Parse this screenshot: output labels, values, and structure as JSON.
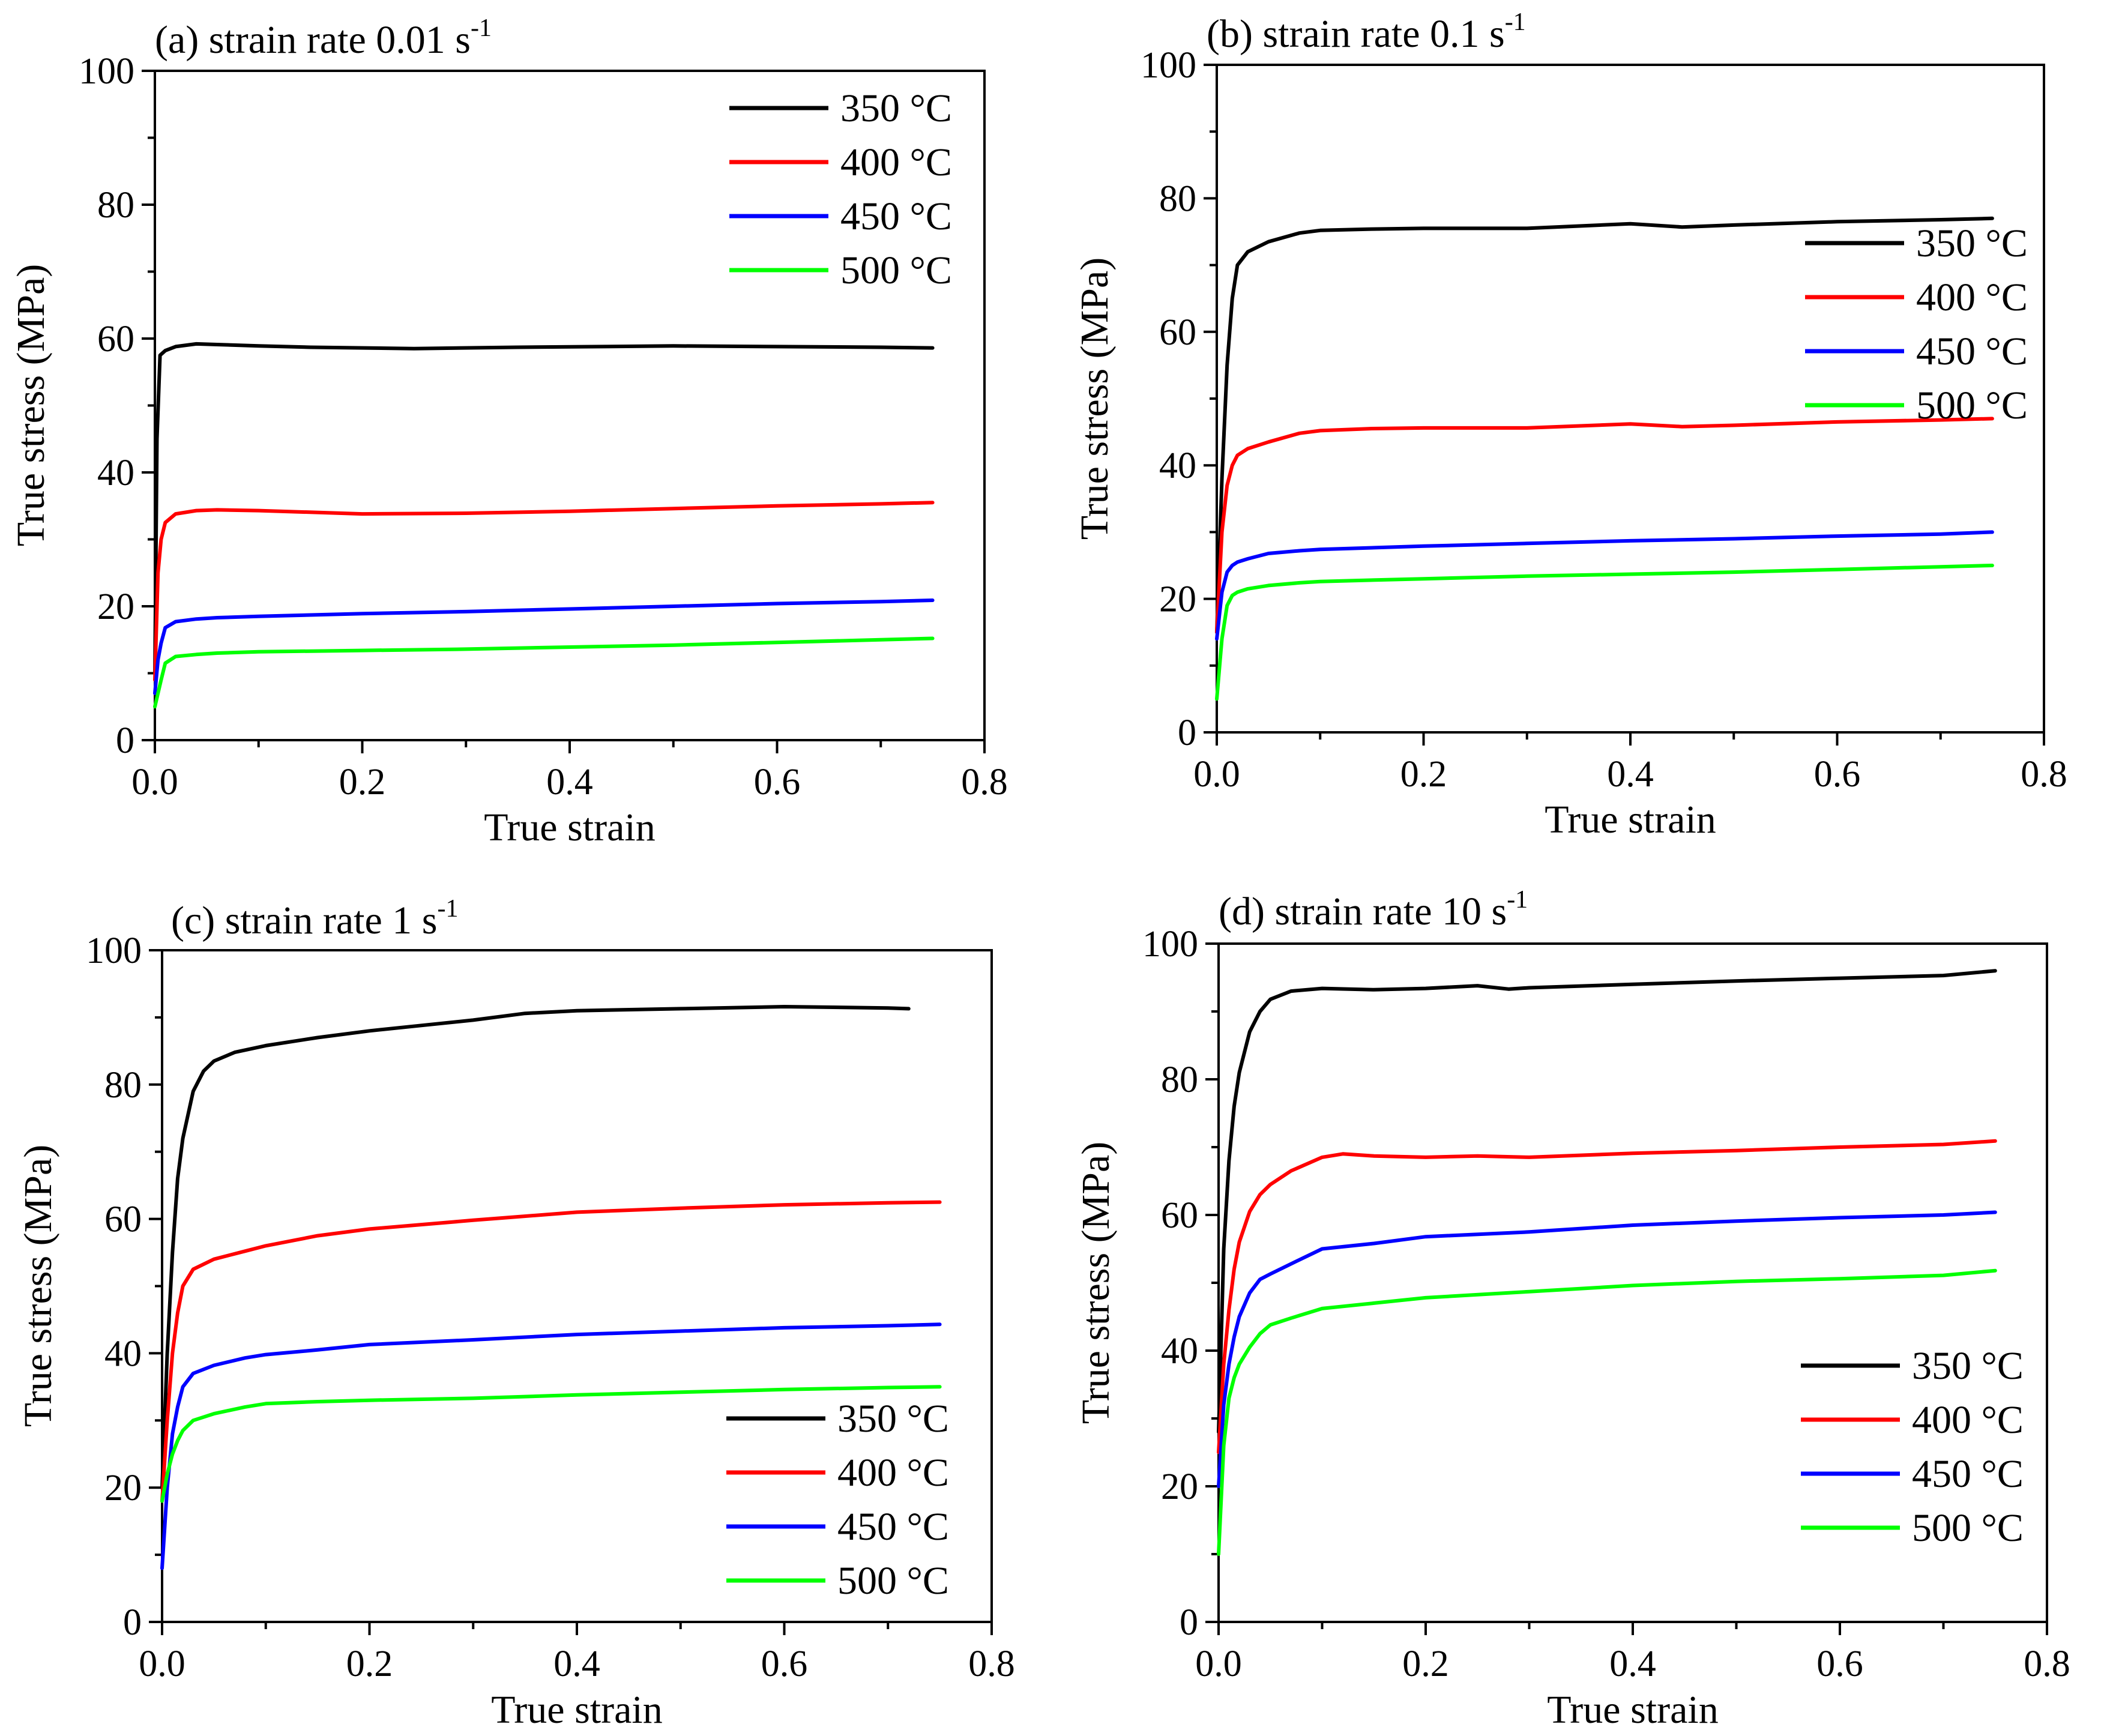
{
  "chart_data": [
    {
      "type": "line",
      "panel": "a",
      "title_text": "(a) strain rate 0.01 s",
      "title_sup": "-1",
      "xlabel": "True strain",
      "ylabel": "True stress (MPa)",
      "xlim": [
        0,
        0.8
      ],
      "ylim": [
        0,
        100
      ],
      "xticks": [
        "0.0",
        "0.2",
        "0.4",
        "0.6",
        "0.8"
      ],
      "yticks": [
        "0",
        "20",
        "40",
        "60",
        "80",
        "100"
      ],
      "legend_position": "top-right",
      "series": [
        {
          "name": "350 °C",
          "color": "#000000",
          "x": [
            0,
            0.002,
            0.005,
            0.01,
            0.02,
            0.04,
            0.06,
            0.1,
            0.15,
            0.25,
            0.35,
            0.5,
            0.6,
            0.7,
            0.75
          ],
          "y": [
            10,
            45,
            57.5,
            58.2,
            58.8,
            59.2,
            59.1,
            58.9,
            58.7,
            58.5,
            58.7,
            58.9,
            58.8,
            58.7,
            58.6
          ]
        },
        {
          "name": "400 °C",
          "color": "#ff0000",
          "x": [
            0,
            0.003,
            0.006,
            0.01,
            0.02,
            0.04,
            0.06,
            0.1,
            0.2,
            0.3,
            0.4,
            0.5,
            0.6,
            0.7,
            0.75
          ],
          "y": [
            9,
            25,
            30,
            32.5,
            33.8,
            34.3,
            34.4,
            34.3,
            33.8,
            33.9,
            34.2,
            34.6,
            35,
            35.3,
            35.5
          ]
        },
        {
          "name": "450 °C",
          "color": "#0000ff",
          "x": [
            0,
            0.003,
            0.006,
            0.01,
            0.02,
            0.04,
            0.06,
            0.1,
            0.2,
            0.3,
            0.4,
            0.5,
            0.6,
            0.7,
            0.75
          ],
          "y": [
            7,
            12,
            14.5,
            16.8,
            17.7,
            18.1,
            18.3,
            18.5,
            18.9,
            19.2,
            19.6,
            20,
            20.4,
            20.7,
            20.9
          ]
        },
        {
          "name": "500 °C",
          "color": "#00ff00",
          "x": [
            0,
            0.003,
            0.006,
            0.01,
            0.02,
            0.04,
            0.06,
            0.1,
            0.2,
            0.3,
            0.4,
            0.5,
            0.6,
            0.7,
            0.75
          ],
          "y": [
            5,
            7,
            9,
            11.5,
            12.5,
            12.8,
            13,
            13.2,
            13.4,
            13.6,
            13.9,
            14.2,
            14.6,
            15,
            15.2
          ]
        }
      ]
    },
    {
      "type": "line",
      "panel": "b",
      "title_text": "(b) strain rate 0.1 s",
      "title_sup": "-1",
      "xlabel": "True strain",
      "ylabel": "True stress (MPa)",
      "xlim": [
        0,
        0.8
      ],
      "ylim": [
        0,
        100
      ],
      "xticks": [
        "0.0",
        "0.2",
        "0.4",
        "0.6",
        "0.8"
      ],
      "yticks": [
        "0",
        "20",
        "40",
        "60",
        "80",
        "100"
      ],
      "legend_position": "right",
      "series": [
        {
          "name": "350 °C",
          "color": "#000000",
          "x": [
            0,
            0.005,
            0.01,
            0.015,
            0.02,
            0.03,
            0.05,
            0.08,
            0.1,
            0.15,
            0.2,
            0.3,
            0.4,
            0.45,
            0.5,
            0.6,
            0.7,
            0.75
          ],
          "y": [
            15,
            38,
            55,
            65,
            70,
            72,
            73.5,
            74.8,
            75.2,
            75.4,
            75.5,
            75.5,
            76.2,
            75.7,
            76,
            76.5,
            76.8,
            77
          ]
        },
        {
          "name": "400 °C",
          "color": "#ff0000",
          "x": [
            0,
            0.005,
            0.01,
            0.015,
            0.02,
            0.03,
            0.05,
            0.08,
            0.1,
            0.15,
            0.2,
            0.3,
            0.4,
            0.45,
            0.5,
            0.6,
            0.7,
            0.75
          ],
          "y": [
            15,
            30,
            37,
            40,
            41.5,
            42.5,
            43.5,
            44.8,
            45.2,
            45.5,
            45.6,
            45.6,
            46.2,
            45.8,
            46,
            46.5,
            46.8,
            47
          ]
        },
        {
          "name": "450 °C",
          "color": "#0000ff",
          "x": [
            0,
            0.005,
            0.01,
            0.015,
            0.02,
            0.03,
            0.05,
            0.08,
            0.1,
            0.2,
            0.3,
            0.4,
            0.5,
            0.6,
            0.7,
            0.75
          ],
          "y": [
            14,
            21,
            24,
            25,
            25.5,
            26,
            26.8,
            27.2,
            27.4,
            27.9,
            28.3,
            28.7,
            29,
            29.4,
            29.7,
            30
          ]
        },
        {
          "name": "500 °C",
          "color": "#00ff00",
          "x": [
            0,
            0.005,
            0.01,
            0.015,
            0.02,
            0.03,
            0.05,
            0.08,
            0.1,
            0.2,
            0.3,
            0.4,
            0.5,
            0.6,
            0.7,
            0.75
          ],
          "y": [
            5,
            14,
            19,
            20.5,
            21,
            21.5,
            22,
            22.4,
            22.6,
            23,
            23.4,
            23.7,
            24,
            24.4,
            24.8,
            25
          ]
        }
      ]
    },
    {
      "type": "line",
      "panel": "c",
      "title_text": "(c) strain rate 1 s",
      "title_sup": "-1",
      "xlabel": "True strain",
      "ylabel": "True stress (MPa)",
      "xlim": [
        0,
        0.8
      ],
      "ylim": [
        0,
        100
      ],
      "xticks": [
        "0.0",
        "0.2",
        "0.4",
        "0.6",
        "0.8"
      ],
      "yticks": [
        "0",
        "20",
        "40",
        "60",
        "80",
        "100"
      ],
      "legend_position": "bottom-right",
      "series": [
        {
          "name": "350 °C",
          "color": "#000000",
          "x": [
            0,
            0.005,
            0.01,
            0.015,
            0.02,
            0.03,
            0.04,
            0.05,
            0.07,
            0.1,
            0.15,
            0.2,
            0.25,
            0.3,
            0.35,
            0.4,
            0.5,
            0.6,
            0.7,
            0.72
          ],
          "y": [
            20,
            40,
            55,
            66,
            72,
            79,
            82,
            83.5,
            84.8,
            85.8,
            87,
            88,
            88.8,
            89.6,
            90.6,
            91,
            91.3,
            91.6,
            91.4,
            91.3
          ]
        },
        {
          "name": "400 °C",
          "color": "#ff0000",
          "x": [
            0,
            0.005,
            0.01,
            0.015,
            0.02,
            0.03,
            0.05,
            0.08,
            0.1,
            0.15,
            0.2,
            0.3,
            0.4,
            0.5,
            0.6,
            0.7,
            0.75
          ],
          "y": [
            18,
            30,
            40,
            46,
            50,
            52.5,
            54,
            55.2,
            56,
            57.5,
            58.5,
            59.8,
            61,
            61.6,
            62.1,
            62.4,
            62.5
          ]
        },
        {
          "name": "450 °C",
          "color": "#0000ff",
          "x": [
            0,
            0.005,
            0.01,
            0.015,
            0.02,
            0.03,
            0.05,
            0.08,
            0.1,
            0.15,
            0.2,
            0.3,
            0.4,
            0.5,
            0.6,
            0.7,
            0.75
          ],
          "y": [
            8,
            20,
            28,
            32,
            35,
            37,
            38.2,
            39.3,
            39.8,
            40.5,
            41.3,
            42,
            42.8,
            43.3,
            43.8,
            44.1,
            44.3
          ]
        },
        {
          "name": "500 °C",
          "color": "#00ff00",
          "x": [
            0,
            0.005,
            0.01,
            0.015,
            0.02,
            0.03,
            0.05,
            0.08,
            0.1,
            0.15,
            0.2,
            0.3,
            0.4,
            0.5,
            0.6,
            0.7,
            0.75
          ],
          "y": [
            18,
            22,
            25,
            27,
            28.5,
            30,
            31,
            32,
            32.5,
            32.8,
            33,
            33.3,
            33.8,
            34.2,
            34.6,
            34.9,
            35
          ]
        }
      ]
    },
    {
      "type": "line",
      "panel": "d",
      "title_text": "(d) strain rate 10 s",
      "title_sup": "-1",
      "xlabel": "True strain",
      "ylabel": "True stress (MPa)",
      "xlim": [
        0,
        0.8
      ],
      "ylim": [
        0,
        100
      ],
      "xticks": [
        "0.0",
        "0.2",
        "0.4",
        "0.6",
        "0.8"
      ],
      "yticks": [
        "0",
        "20",
        "40",
        "60",
        "80",
        "100"
      ],
      "legend_position": "bottom-right",
      "series": [
        {
          "name": "350 °C",
          "color": "#000000",
          "x": [
            0,
            0.005,
            0.01,
            0.015,
            0.02,
            0.03,
            0.04,
            0.05,
            0.07,
            0.1,
            0.15,
            0.2,
            0.25,
            0.28,
            0.3,
            0.4,
            0.5,
            0.6,
            0.7,
            0.75
          ],
          "y": [
            28,
            55,
            68,
            76,
            81,
            87,
            90,
            91.8,
            93,
            93.4,
            93.2,
            93.4,
            93.8,
            93.3,
            93.5,
            94,
            94.5,
            94.9,
            95.3,
            96
          ]
        },
        {
          "name": "400 °C",
          "color": "#ff0000",
          "x": [
            0,
            0.005,
            0.01,
            0.015,
            0.02,
            0.03,
            0.04,
            0.05,
            0.07,
            0.1,
            0.12,
            0.15,
            0.2,
            0.25,
            0.3,
            0.4,
            0.5,
            0.6,
            0.7,
            0.75
          ],
          "y": [
            25,
            38,
            46,
            52,
            56,
            60.5,
            63,
            64.5,
            66.5,
            68.5,
            69,
            68.7,
            68.5,
            68.7,
            68.5,
            69.1,
            69.5,
            70,
            70.4,
            70.9
          ]
        },
        {
          "name": "450 °C",
          "color": "#0000ff",
          "x": [
            0,
            0.005,
            0.01,
            0.015,
            0.02,
            0.03,
            0.04,
            0.05,
            0.07,
            0.1,
            0.15,
            0.2,
            0.3,
            0.4,
            0.5,
            0.6,
            0.7,
            0.75
          ],
          "y": [
            20,
            32,
            38,
            42,
            45,
            48.5,
            50.5,
            51.3,
            52.8,
            55,
            55.8,
            56.8,
            57.5,
            58.5,
            59.1,
            59.6,
            60,
            60.4
          ]
        },
        {
          "name": "500 °C",
          "color": "#00ff00",
          "x": [
            0,
            0.005,
            0.01,
            0.015,
            0.02,
            0.03,
            0.04,
            0.05,
            0.07,
            0.1,
            0.15,
            0.2,
            0.3,
            0.4,
            0.5,
            0.6,
            0.7,
            0.75
          ],
          "y": [
            10,
            26,
            33,
            36,
            38,
            40.5,
            42.5,
            43.8,
            44.8,
            46.2,
            47,
            47.8,
            48.7,
            49.6,
            50.2,
            50.6,
            51.1,
            51.8
          ]
        }
      ]
    }
  ]
}
